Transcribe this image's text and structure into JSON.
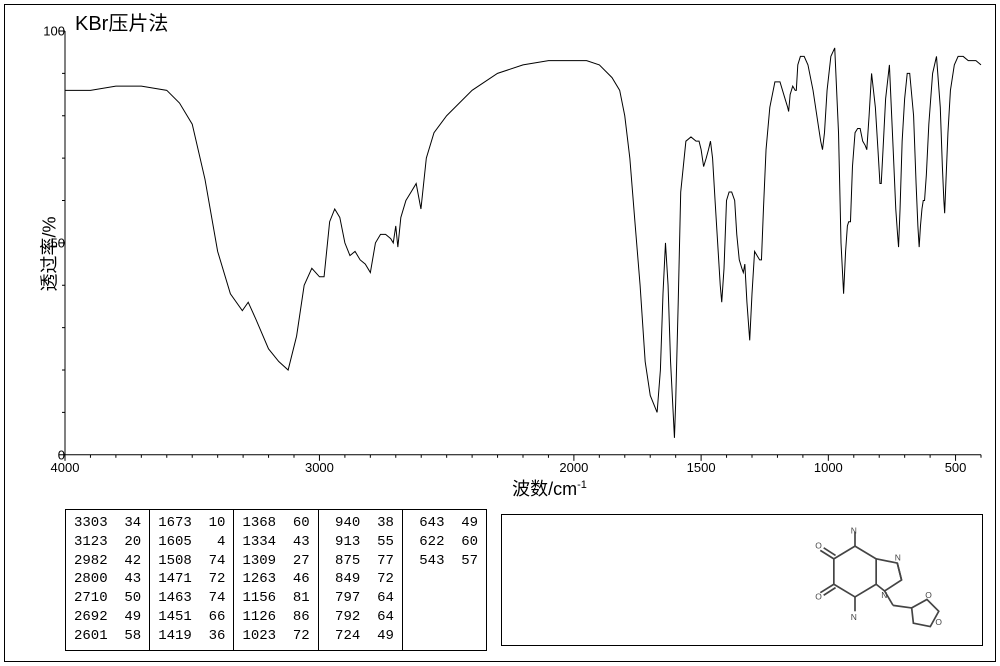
{
  "title": "KBr压片法",
  "ylabel": "透过率/%",
  "xlabel_prefix": "波数/cm",
  "xlabel_sup": "-1",
  "chart": {
    "type": "line",
    "xlim": [
      4000,
      400
    ],
    "ylim": [
      0,
      100
    ],
    "ytick_step": 50,
    "yticks": [
      0,
      50,
      100
    ],
    "xticks": [
      4000,
      3000,
      2000,
      1500,
      1000,
      500
    ],
    "line_color": "#000000",
    "line_width": 1,
    "background_color": "#ffffff",
    "axis_color": "#000000",
    "points": [
      [
        4000,
        86
      ],
      [
        3900,
        86
      ],
      [
        3800,
        87
      ],
      [
        3700,
        87
      ],
      [
        3600,
        86
      ],
      [
        3550,
        83
      ],
      [
        3500,
        78
      ],
      [
        3450,
        65
      ],
      [
        3400,
        48
      ],
      [
        3350,
        38
      ],
      [
        3303,
        34
      ],
      [
        3280,
        36
      ],
      [
        3250,
        32
      ],
      [
        3200,
        25
      ],
      [
        3160,
        22
      ],
      [
        3123,
        20
      ],
      [
        3090,
        28
      ],
      [
        3060,
        40
      ],
      [
        3030,
        44
      ],
      [
        3000,
        42
      ],
      [
        2982,
        42
      ],
      [
        2960,
        55
      ],
      [
        2940,
        58
      ],
      [
        2920,
        56
      ],
      [
        2900,
        50
      ],
      [
        2880,
        47
      ],
      [
        2860,
        48
      ],
      [
        2840,
        46
      ],
      [
        2820,
        45
      ],
      [
        2800,
        43
      ],
      [
        2780,
        50
      ],
      [
        2760,
        52
      ],
      [
        2740,
        52
      ],
      [
        2720,
        51
      ],
      [
        2710,
        50
      ],
      [
        2700,
        54
      ],
      [
        2692,
        49
      ],
      [
        2680,
        56
      ],
      [
        2660,
        60
      ],
      [
        2640,
        62
      ],
      [
        2620,
        64
      ],
      [
        2601,
        58
      ],
      [
        2580,
        70
      ],
      [
        2550,
        76
      ],
      [
        2500,
        80
      ],
      [
        2400,
        86
      ],
      [
        2300,
        90
      ],
      [
        2200,
        92
      ],
      [
        2100,
        93
      ],
      [
        2050,
        93
      ],
      [
        2000,
        93
      ],
      [
        1950,
        93
      ],
      [
        1900,
        92
      ],
      [
        1850,
        89
      ],
      [
        1820,
        86
      ],
      [
        1800,
        80
      ],
      [
        1780,
        70
      ],
      [
        1760,
        55
      ],
      [
        1740,
        40
      ],
      [
        1720,
        22
      ],
      [
        1700,
        14
      ],
      [
        1673,
        10
      ],
      [
        1660,
        20
      ],
      [
        1650,
        38
      ],
      [
        1640,
        50
      ],
      [
        1630,
        40
      ],
      [
        1620,
        22
      ],
      [
        1610,
        10
      ],
      [
        1605,
        4
      ],
      [
        1600,
        12
      ],
      [
        1590,
        36
      ],
      [
        1580,
        62
      ],
      [
        1560,
        74
      ],
      [
        1540,
        75
      ],
      [
        1520,
        74
      ],
      [
        1508,
        74
      ],
      [
        1500,
        72
      ],
      [
        1490,
        68
      ],
      [
        1480,
        70
      ],
      [
        1471,
        72
      ],
      [
        1463,
        74
      ],
      [
        1455,
        70
      ],
      [
        1451,
        66
      ],
      [
        1445,
        60
      ],
      [
        1435,
        50
      ],
      [
        1425,
        40
      ],
      [
        1419,
        36
      ],
      [
        1410,
        44
      ],
      [
        1400,
        60
      ],
      [
        1390,
        62
      ],
      [
        1380,
        62
      ],
      [
        1368,
        60
      ],
      [
        1360,
        52
      ],
      [
        1350,
        46
      ],
      [
        1340,
        44
      ],
      [
        1334,
        43
      ],
      [
        1328,
        45
      ],
      [
        1320,
        36
      ],
      [
        1309,
        27
      ],
      [
        1300,
        38
      ],
      [
        1290,
        48
      ],
      [
        1280,
        47
      ],
      [
        1270,
        46
      ],
      [
        1263,
        46
      ],
      [
        1255,
        58
      ],
      [
        1245,
        72
      ],
      [
        1230,
        82
      ],
      [
        1210,
        88
      ],
      [
        1190,
        88
      ],
      [
        1170,
        84
      ],
      [
        1160,
        82
      ],
      [
        1156,
        81
      ],
      [
        1150,
        85
      ],
      [
        1140,
        87
      ],
      [
        1130,
        86
      ],
      [
        1126,
        86
      ],
      [
        1120,
        92
      ],
      [
        1110,
        94
      ],
      [
        1095,
        94
      ],
      [
        1080,
        92
      ],
      [
        1060,
        86
      ],
      [
        1040,
        78
      ],
      [
        1030,
        74
      ],
      [
        1023,
        72
      ],
      [
        1015,
        76
      ],
      [
        1005,
        86
      ],
      [
        990,
        94
      ],
      [
        975,
        96
      ],
      [
        960,
        76
      ],
      [
        950,
        50
      ],
      [
        940,
        38
      ],
      [
        932,
        48
      ],
      [
        925,
        54
      ],
      [
        920,
        55
      ],
      [
        913,
        55
      ],
      [
        905,
        68
      ],
      [
        895,
        76
      ],
      [
        885,
        77
      ],
      [
        875,
        77
      ],
      [
        865,
        74
      ],
      [
        855,
        73
      ],
      [
        849,
        72
      ],
      [
        840,
        80
      ],
      [
        830,
        90
      ],
      [
        815,
        82
      ],
      [
        805,
        72
      ],
      [
        797,
        64
      ],
      [
        792,
        64
      ],
      [
        785,
        72
      ],
      [
        775,
        84
      ],
      [
        760,
        92
      ],
      [
        745,
        72
      ],
      [
        735,
        58
      ],
      [
        728,
        52
      ],
      [
        724,
        49
      ],
      [
        718,
        58
      ],
      [
        710,
        74
      ],
      [
        700,
        84
      ],
      [
        690,
        90
      ],
      [
        680,
        90
      ],
      [
        665,
        80
      ],
      [
        655,
        64
      ],
      [
        648,
        54
      ],
      [
        643,
        49
      ],
      [
        638,
        54
      ],
      [
        632,
        58
      ],
      [
        627,
        60
      ],
      [
        622,
        60
      ],
      [
        615,
        66
      ],
      [
        605,
        78
      ],
      [
        590,
        90
      ],
      [
        575,
        94
      ],
      [
        560,
        82
      ],
      [
        552,
        68
      ],
      [
        546,
        60
      ],
      [
        543,
        57
      ],
      [
        538,
        64
      ],
      [
        530,
        76
      ],
      [
        520,
        86
      ],
      [
        505,
        92
      ],
      [
        490,
        94
      ],
      [
        470,
        94
      ],
      [
        450,
        93
      ],
      [
        420,
        93
      ],
      [
        400,
        92
      ]
    ]
  },
  "peak_table": [
    [
      [
        3303,
        34
      ],
      [
        3123,
        20
      ],
      [
        2982,
        42
      ],
      [
        2800,
        43
      ],
      [
        2710,
        50
      ],
      [
        2692,
        49
      ],
      [
        2601,
        58
      ]
    ],
    [
      [
        1673,
        10
      ],
      [
        1605,
        4
      ],
      [
        1508,
        74
      ],
      [
        1471,
        72
      ],
      [
        1463,
        74
      ],
      [
        1451,
        66
      ],
      [
        1419,
        36
      ]
    ],
    [
      [
        1368,
        60
      ],
      [
        1334,
        43
      ],
      [
        1309,
        27
      ],
      [
        1263,
        46
      ],
      [
        1156,
        81
      ],
      [
        1126,
        86
      ],
      [
        1023,
        72
      ]
    ],
    [
      [
        940,
        38
      ],
      [
        913,
        55
      ],
      [
        875,
        77
      ],
      [
        849,
        72
      ],
      [
        797,
        64
      ],
      [
        792,
        64
      ],
      [
        724,
        49
      ]
    ],
    [
      [
        643,
        49
      ],
      [
        622,
        60
      ],
      [
        543,
        57
      ]
    ]
  ],
  "label_fontsize": 18,
  "tick_fontsize": 13,
  "title_fontsize": 20
}
